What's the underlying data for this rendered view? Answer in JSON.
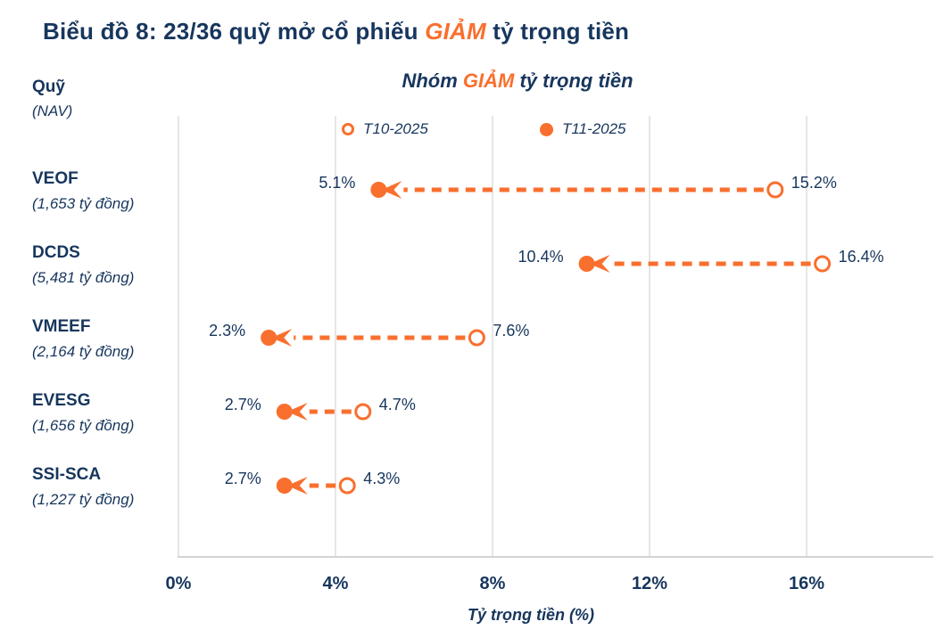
{
  "title": {
    "prefix": "Biểu đồ 8: 23/36 quỹ mở cổ phiếu ",
    "highlight": "GIẢM",
    "suffix": " tỷ trọng tiền"
  },
  "subtitle": {
    "prefix": "Nhóm ",
    "highlight": "GIẢM",
    "suffix": " tỷ trọng tiền"
  },
  "y_axis_header": {
    "line1": "Quỹ",
    "line2": "(NAV)"
  },
  "legend": [
    {
      "label": "T10-2025",
      "marker": "open-circle"
    },
    {
      "label": "T11-2025",
      "marker": "filled-circle"
    }
  ],
  "colors": {
    "navy": "#17365D",
    "orange": "#F96F2E",
    "gridline": "#D9D9D9",
    "axis_line": "#C6C6C6"
  },
  "chart_data": {
    "type": "scatter",
    "subtype": "dumbbell-arrow",
    "title": "Nhóm GIẢM tỷ trọng tiền",
    "xlabel": "Tỷ trọng tiền (%)",
    "ylabel": "Quỹ (NAV)",
    "xlim": [
      0,
      16
    ],
    "grid": "vertical",
    "legend_position": "top-center",
    "series": [
      {
        "name": "T10-2025",
        "marker": "open-circle",
        "values": [
          15.2,
          16.4,
          7.6,
          4.7,
          4.3
        ]
      },
      {
        "name": "T11-2025",
        "marker": "filled-circle-arrow",
        "values": [
          5.1,
          10.4,
          2.3,
          2.7,
          2.7
        ]
      }
    ],
    "funds": [
      {
        "name": "VEOF",
        "nav": "(1,653 tỷ đồng)",
        "t10": 15.2,
        "t11": 5.1,
        "t10_label": "15.2%",
        "t11_label": "5.1%"
      },
      {
        "name": "DCDS",
        "nav": "(5,481 tỷ đồng)",
        "t10": 16.4,
        "t11": 10.4,
        "t10_label": "16.4%",
        "t11_label": "10.4%"
      },
      {
        "name": "VMEEF",
        "nav": "(2,164 tỷ đồng)",
        "t10": 7.6,
        "t11": 2.3,
        "t10_label": "7.6%",
        "t11_label": "2.3%"
      },
      {
        "name": "EVESG",
        "nav": "(1,656 tỷ đồng)",
        "t10": 4.7,
        "t11": 2.7,
        "t10_label": "4.7%",
        "t11_label": "2.7%"
      },
      {
        "name": "SSI-SCA",
        "nav": "(1,227 tỷ đồng)",
        "t10": 4.3,
        "t11": 2.7,
        "t10_label": "4.3%",
        "t11_label": "2.7%"
      }
    ],
    "x_axis": {
      "ticks": [
        "0%",
        "4%",
        "8%",
        "12%",
        "16%"
      ],
      "tick_values": [
        0,
        4,
        8,
        12,
        16
      ],
      "label": "Tỷ trọng tiền (%)"
    }
  }
}
